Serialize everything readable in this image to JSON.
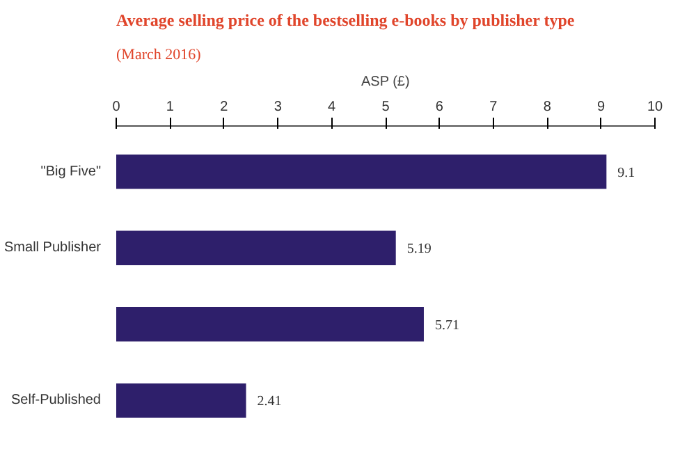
{
  "chart_data": {
    "type": "bar",
    "orientation": "horizontal",
    "title": "Average selling price of the bestselling e-books by publisher type",
    "subtitle": "(March 2016)",
    "xlabel": "ASP (£)",
    "categories": [
      "\"Big Five\"",
      "Small Publisher",
      null,
      "Self-Published"
    ],
    "values": [
      9.1,
      5.19,
      5.71,
      2.41
    ],
    "color": "#2e1f6b",
    "data_labels": true,
    "xlim": [
      0,
      10
    ],
    "xticks": [
      0,
      1,
      2,
      3,
      4,
      5,
      6,
      7,
      8,
      9,
      10
    ],
    "grid": false
  }
}
